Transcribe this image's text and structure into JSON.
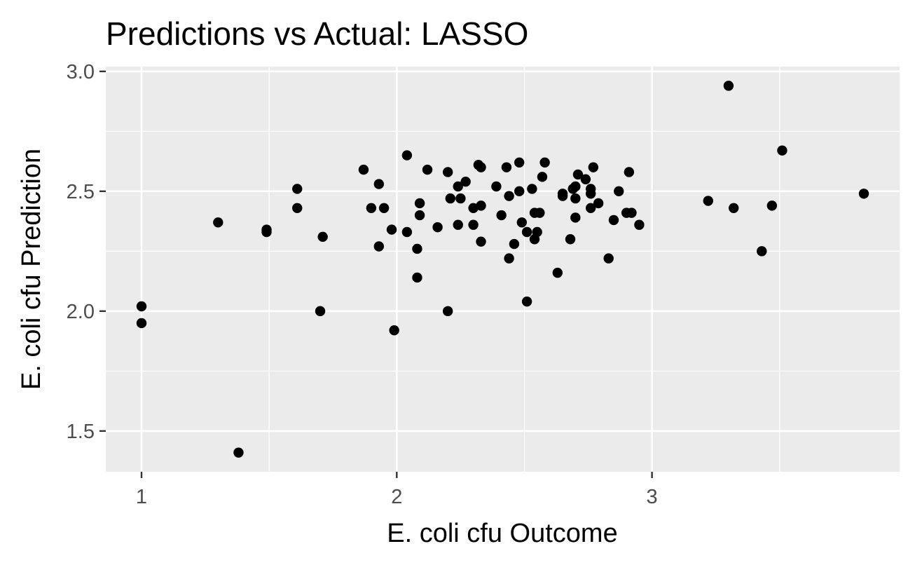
{
  "chart_data": {
    "type": "scatter",
    "title": "Predictions vs Actual: LASSO",
    "xlabel": "E. coli cfu Outcome",
    "ylabel": "E. coli cfu Prediction",
    "xlim": [
      0.86,
      3.97
    ],
    "ylim": [
      1.33,
      3.02
    ],
    "xticks": [
      1,
      2,
      3
    ],
    "yticks": [
      1.5,
      2.0,
      2.5,
      3.0
    ],
    "x_tick_labels": [
      "1",
      "2",
      "3"
    ],
    "y_tick_labels": [
      "1.5",
      "2.0",
      "2.5",
      "3.0"
    ],
    "grid": true,
    "legend": "none",
    "colors": {
      "panel": "#ebebeb",
      "grid": "#ffffff",
      "point": "#000000",
      "tick": "#333333"
    },
    "points": [
      [
        1.0,
        2.02
      ],
      [
        1.0,
        1.95
      ],
      [
        1.3,
        2.37
      ],
      [
        1.38,
        1.41
      ],
      [
        1.49,
        2.34
      ],
      [
        1.49,
        2.33
      ],
      [
        1.61,
        2.51
      ],
      [
        1.61,
        2.43
      ],
      [
        1.7,
        2.0
      ],
      [
        1.71,
        2.31
      ],
      [
        1.87,
        2.59
      ],
      [
        1.9,
        2.43
      ],
      [
        1.93,
        2.53
      ],
      [
        1.93,
        2.27
      ],
      [
        1.95,
        2.43
      ],
      [
        1.98,
        2.34
      ],
      [
        1.99,
        1.92
      ],
      [
        2.04,
        2.65
      ],
      [
        2.04,
        2.33
      ],
      [
        2.08,
        2.26
      ],
      [
        2.09,
        2.45
      ],
      [
        2.09,
        2.4
      ],
      [
        2.08,
        2.14
      ],
      [
        2.12,
        2.59
      ],
      [
        2.16,
        2.35
      ],
      [
        2.2,
        2.58
      ],
      [
        2.21,
        2.47
      ],
      [
        2.2,
        2.0
      ],
      [
        2.24,
        2.52
      ],
      [
        2.25,
        2.47
      ],
      [
        2.27,
        2.54
      ],
      [
        2.24,
        2.36
      ],
      [
        2.3,
        2.36
      ],
      [
        2.3,
        2.43
      ],
      [
        2.32,
        2.61
      ],
      [
        2.33,
        2.6
      ],
      [
        2.33,
        2.44
      ],
      [
        2.33,
        2.29
      ],
      [
        2.39,
        2.52
      ],
      [
        2.41,
        2.4
      ],
      [
        2.43,
        2.6
      ],
      [
        2.44,
        2.48
      ],
      [
        2.44,
        2.22
      ],
      [
        2.46,
        2.28
      ],
      [
        2.48,
        2.62
      ],
      [
        2.48,
        2.5
      ],
      [
        2.49,
        2.37
      ],
      [
        2.51,
        2.33
      ],
      [
        2.51,
        2.04
      ],
      [
        2.53,
        2.51
      ],
      [
        2.54,
        2.41
      ],
      [
        2.54,
        2.3
      ],
      [
        2.55,
        2.33
      ],
      [
        2.56,
        2.41
      ],
      [
        2.57,
        2.56
      ],
      [
        2.58,
        2.62
      ],
      [
        2.63,
        2.16
      ],
      [
        2.65,
        2.49
      ],
      [
        2.65,
        2.48
      ],
      [
        2.68,
        2.3
      ],
      [
        2.69,
        2.51
      ],
      [
        2.7,
        2.52
      ],
      [
        2.7,
        2.47
      ],
      [
        2.7,
        2.39
      ],
      [
        2.71,
        2.57
      ],
      [
        2.74,
        2.55
      ],
      [
        2.76,
        2.51
      ],
      [
        2.76,
        2.49
      ],
      [
        2.77,
        2.6
      ],
      [
        2.76,
        2.43
      ],
      [
        2.79,
        2.45
      ],
      [
        2.83,
        2.22
      ],
      [
        2.85,
        2.38
      ],
      [
        2.87,
        2.5
      ],
      [
        2.9,
        2.41
      ],
      [
        2.91,
        2.58
      ],
      [
        2.92,
        2.41
      ],
      [
        2.95,
        2.36
      ],
      [
        3.22,
        2.46
      ],
      [
        3.3,
        2.94
      ],
      [
        3.32,
        2.43
      ],
      [
        3.43,
        2.25
      ],
      [
        3.47,
        2.44
      ],
      [
        3.51,
        2.67
      ],
      [
        3.83,
        2.49
      ]
    ]
  }
}
